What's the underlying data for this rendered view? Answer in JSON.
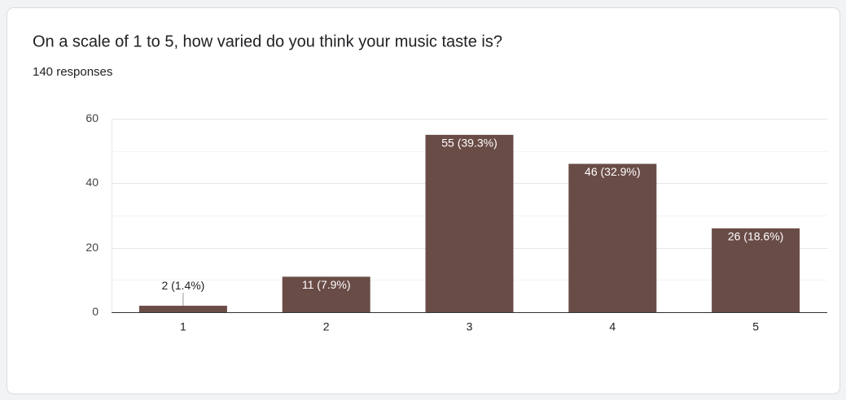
{
  "chart_data": {
    "type": "bar",
    "title": "On a scale of 1 to 5, how varied do you think your music taste is?",
    "subtitle": "140 responses",
    "categories": [
      "1",
      "2",
      "3",
      "4",
      "5"
    ],
    "values": [
      2,
      11,
      55,
      46,
      26
    ],
    "value_labels": [
      "2 (1.4%)",
      "11 (7.9%)",
      "55 (39.3%)",
      "46 (32.9%)",
      "26 (18.6%)"
    ],
    "color": "#6a4c47",
    "ylim": [
      0,
      60
    ],
    "yticks": [
      0,
      20,
      40,
      60
    ],
    "minor_yticks": [
      10,
      30,
      50
    ],
    "grid": true
  }
}
